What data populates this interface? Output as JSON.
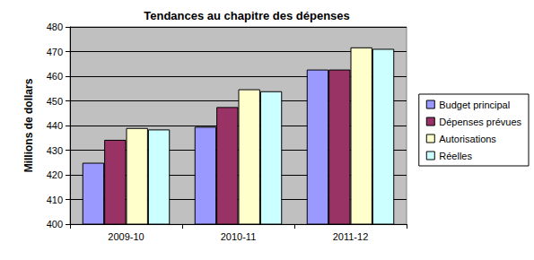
{
  "chart_data": {
    "type": "bar",
    "title": "Tendances au chapitre des dépenses",
    "y_label": "Millions de dollars",
    "categories": [
      "2009-10",
      "2010-11",
      "2011-12"
    ],
    "series": [
      {
        "name": "Budget principal",
        "color": "#9999ff",
        "values": [
          424.9,
          439.5,
          462.7
        ]
      },
      {
        "name": "Dépenses prévues",
        "color": "#993366",
        "values": [
          434.2,
          447.5,
          462.7
        ]
      },
      {
        "name": "Autorisations",
        "color": "#ffffcc",
        "values": [
          439.0,
          454.7,
          471.7
        ]
      },
      {
        "name": "Réelles",
        "color": "#ccffff",
        "values": [
          438.4,
          453.9,
          471.1
        ]
      }
    ],
    "ylim": [
      400,
      480
    ],
    "yticks": [
      400,
      410,
      420,
      430,
      440,
      450,
      460,
      470,
      480
    ],
    "grid": true,
    "legend": "right"
  }
}
